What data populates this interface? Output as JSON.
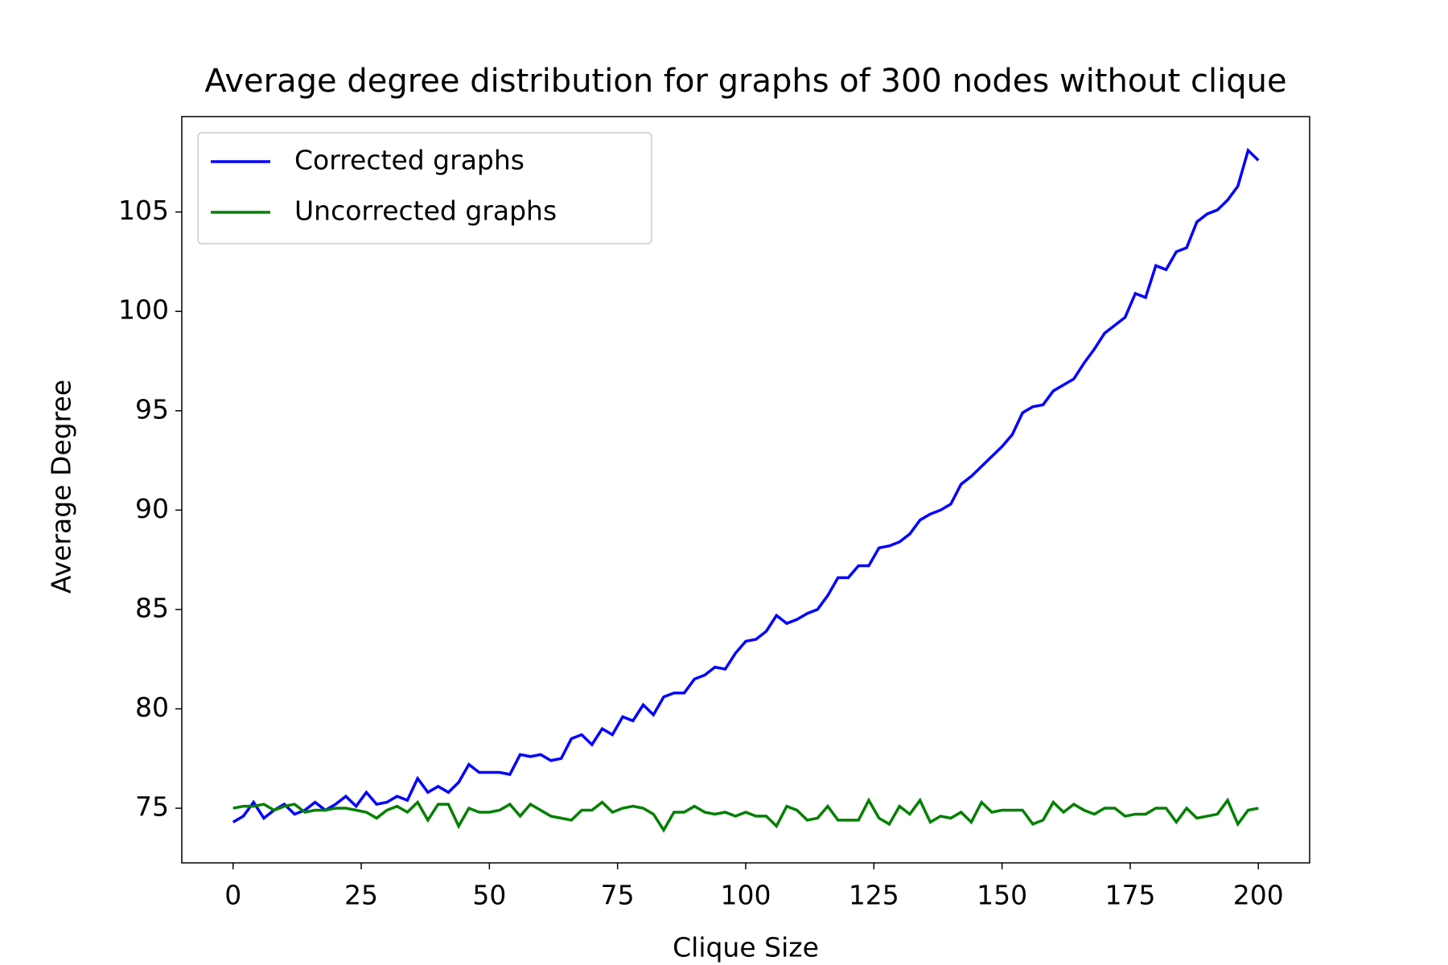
{
  "chart_data": {
    "type": "line",
    "title": "Average degree distribution for graphs of 300 nodes without clique",
    "xlabel": "Clique Size",
    "ylabel": "Average Degree",
    "x": [
      0,
      2,
      4,
      6,
      8,
      10,
      12,
      14,
      16,
      18,
      20,
      22,
      24,
      26,
      28,
      30,
      32,
      34,
      36,
      38,
      40,
      42,
      44,
      46,
      48,
      50,
      52,
      54,
      56,
      58,
      60,
      62,
      64,
      66,
      68,
      70,
      72,
      74,
      76,
      78,
      80,
      82,
      84,
      86,
      88,
      90,
      92,
      94,
      96,
      98,
      100,
      102,
      104,
      106,
      108,
      110,
      112,
      114,
      116,
      118,
      120,
      122,
      124,
      126,
      128,
      130,
      132,
      134,
      136,
      138,
      140,
      142,
      144,
      146,
      148,
      150,
      152,
      154,
      156,
      158,
      160,
      162,
      164,
      166,
      168,
      170,
      172,
      174,
      176,
      178,
      180,
      182,
      184,
      186,
      188,
      190,
      192,
      194,
      196,
      198,
      200
    ],
    "series": [
      {
        "name": "Corrected graphs",
        "color": "#0000ff",
        "values": [
          74.3,
          74.6,
          75.3,
          74.5,
          74.9,
          75.2,
          74.7,
          74.9,
          75.3,
          74.9,
          75.2,
          75.6,
          75.1,
          75.8,
          75.2,
          75.3,
          75.6,
          75.4,
          76.5,
          75.8,
          76.1,
          75.8,
          76.3,
          77.2,
          76.8,
          76.8,
          76.8,
          76.7,
          77.7,
          77.6,
          77.7,
          77.4,
          77.5,
          78.5,
          78.7,
          78.2,
          79.0,
          78.7,
          79.6,
          79.4,
          80.2,
          79.7,
          80.6,
          80.8,
          80.8,
          81.5,
          81.7,
          82.1,
          82.0,
          82.8,
          83.4,
          83.5,
          83.9,
          84.7,
          84.3,
          84.5,
          84.8,
          85.0,
          85.7,
          86.6,
          86.6,
          87.2,
          87.2,
          88.1,
          88.2,
          88.4,
          88.8,
          89.5,
          89.8,
          90.0,
          90.3,
          91.3,
          91.7,
          92.2,
          92.7,
          93.2,
          93.8,
          94.9,
          95.2,
          95.3,
          96.0,
          96.3,
          96.6,
          97.4,
          98.1,
          98.9,
          99.3,
          99.7,
          100.9,
          100.7,
          102.3,
          102.1,
          103.0,
          103.2,
          104.5,
          104.9,
          105.1,
          105.6,
          106.3,
          108.1,
          107.6
        ]
      },
      {
        "name": "Uncorrected graphs",
        "color": "#008000",
        "values": [
          75.0,
          75.1,
          75.1,
          75.2,
          74.9,
          75.1,
          75.2,
          74.8,
          74.9,
          74.9,
          75.0,
          75.0,
          74.9,
          74.8,
          74.5,
          74.9,
          75.1,
          74.8,
          75.3,
          74.4,
          75.2,
          75.2,
          74.1,
          75.0,
          74.8,
          74.8,
          74.9,
          75.2,
          74.6,
          75.2,
          74.9,
          74.6,
          74.5,
          74.4,
          74.9,
          74.9,
          75.3,
          74.8,
          75.0,
          75.1,
          75.0,
          74.7,
          73.9,
          74.8,
          74.8,
          75.1,
          74.8,
          74.7,
          74.8,
          74.6,
          74.8,
          74.6,
          74.6,
          74.1,
          75.1,
          74.9,
          74.4,
          74.5,
          75.1,
          74.4,
          74.4,
          74.4,
          75.4,
          74.5,
          74.2,
          75.1,
          74.7,
          75.4,
          74.3,
          74.6,
          74.5,
          74.8,
          74.3,
          75.3,
          74.8,
          74.9,
          74.9,
          74.9,
          74.2,
          74.4,
          75.3,
          74.8,
          75.2,
          74.9,
          74.7,
          75.0,
          75.0,
          74.6,
          74.7,
          74.7,
          75.0,
          75.0,
          74.3,
          75.0,
          74.5,
          74.6,
          74.7,
          75.4,
          74.2,
          74.9,
          75.0
        ]
      }
    ],
    "xlim": [
      -10,
      210
    ],
    "ylim": [
      72.25,
      109.8
    ],
    "xticks": [
      0,
      25,
      50,
      75,
      100,
      125,
      150,
      175,
      200
    ],
    "yticks": [
      75,
      80,
      85,
      90,
      95,
      100,
      105
    ],
    "legend": "upper left",
    "grid": false
  }
}
